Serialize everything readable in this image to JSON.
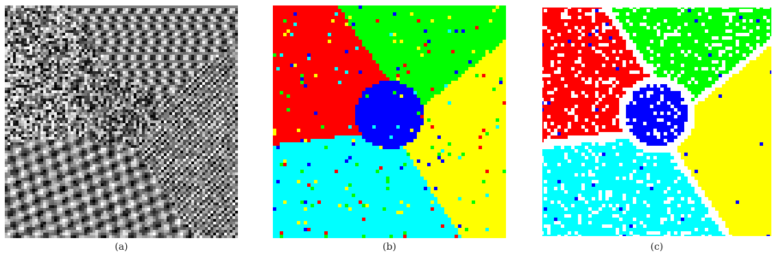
{
  "figure": {
    "panels": [
      {
        "id": "a",
        "caption": "(a)",
        "kind": "texture-mosaic"
      },
      {
        "id": "b",
        "caption": "(b)",
        "kind": "segmentation-result"
      },
      {
        "id": "c",
        "caption": "(c)",
        "kind": "segmentation-result-with-boundaries"
      }
    ],
    "segment_colors": {
      "red": "#ff0000",
      "green": "#00ff00",
      "blue": "#0000ff",
      "cyan": "#00ffff",
      "yellow": "#ffff00",
      "boundary": "#ffffff"
    }
  }
}
